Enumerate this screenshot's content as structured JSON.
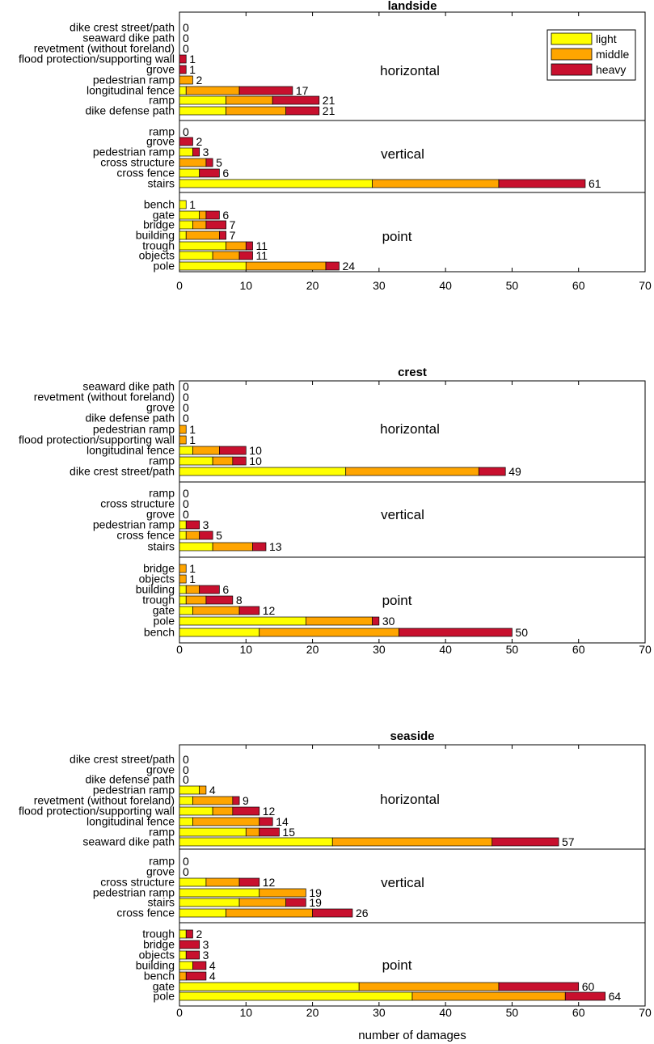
{
  "chart_data": [
    {
      "type": "stacked-bar-horizontal",
      "title": "landside",
      "xlabel": "",
      "xlim": [
        0,
        70
      ],
      "xticks": [
        "0",
        "10",
        "20",
        "30",
        "40",
        "50",
        "60",
        "70"
      ],
      "legend": {
        "placement": "top-right",
        "entries": [
          {
            "name": "light",
            "color": "#ffff00"
          },
          {
            "name": "middle",
            "color": "#ffa500"
          },
          {
            "name": "heavy",
            "color": "#c8102e"
          }
        ]
      },
      "groups": [
        {
          "name": "horizontal",
          "categories": [
            {
              "label": "dike crest street/path",
              "light": 0,
              "middle": 0,
              "heavy": 0,
              "total": "0"
            },
            {
              "label": "seaward dike path",
              "light": 0,
              "middle": 0,
              "heavy": 0,
              "total": "0"
            },
            {
              "label": "revetment (without foreland)",
              "light": 0,
              "middle": 0,
              "heavy": 0,
              "total": "0"
            },
            {
              "label": "flood protection/supporting wall",
              "light": 0,
              "middle": 0,
              "heavy": 1,
              "total": "1"
            },
            {
              "label": "grove",
              "light": 0,
              "middle": 0,
              "heavy": 1,
              "total": "1"
            },
            {
              "label": "pedestrian ramp",
              "light": 0,
              "middle": 2,
              "heavy": 0,
              "total": "2"
            },
            {
              "label": "longitudinal fence",
              "light": 1,
              "middle": 8,
              "heavy": 8,
              "total": "17"
            },
            {
              "label": "ramp",
              "light": 7,
              "middle": 7,
              "heavy": 7,
              "total": "21"
            },
            {
              "label": "dike defense path",
              "light": 7,
              "middle": 9,
              "heavy": 5,
              "total": "21"
            }
          ]
        },
        {
          "name": "vertical",
          "categories": [
            {
              "label": "ramp",
              "light": 0,
              "middle": 0,
              "heavy": 0,
              "total": "0"
            },
            {
              "label": "grove",
              "light": 0,
              "middle": 0,
              "heavy": 2,
              "total": "2"
            },
            {
              "label": "pedestrian ramp",
              "light": 2,
              "middle": 0,
              "heavy": 1,
              "total": "3"
            },
            {
              "label": "cross structure",
              "light": 0,
              "middle": 4,
              "heavy": 1,
              "total": "5"
            },
            {
              "label": "cross fence",
              "light": 3,
              "middle": 0,
              "heavy": 3,
              "total": "6"
            },
            {
              "label": "stairs",
              "light": 29,
              "middle": 19,
              "heavy": 13,
              "total": "61"
            }
          ]
        },
        {
          "name": "point",
          "categories": [
            {
              "label": "bench",
              "light": 1,
              "middle": 0,
              "heavy": 0,
              "total": "1"
            },
            {
              "label": "gate",
              "light": 3,
              "middle": 1,
              "heavy": 2,
              "total": "6"
            },
            {
              "label": "bridge",
              "light": 2,
              "middle": 2,
              "heavy": 3,
              "total": "7"
            },
            {
              "label": "building",
              "light": 1,
              "middle": 5,
              "heavy": 1,
              "total": "7"
            },
            {
              "label": "trough",
              "light": 7,
              "middle": 3,
              "heavy": 1,
              "total": "11"
            },
            {
              "label": "objects",
              "light": 5,
              "middle": 4,
              "heavy": 2,
              "total": "11"
            },
            {
              "label": "pole",
              "light": 10,
              "middle": 12,
              "heavy": 2,
              "total": "24"
            }
          ]
        }
      ]
    },
    {
      "type": "stacked-bar-horizontal",
      "title": "crest",
      "xlabel": "",
      "xlim": [
        0,
        70
      ],
      "xticks": [
        "0",
        "10",
        "20",
        "30",
        "40",
        "50",
        "60",
        "70"
      ],
      "groups": [
        {
          "name": "horizontal",
          "categories": [
            {
              "label": "seaward dike path",
              "light": 0,
              "middle": 0,
              "heavy": 0,
              "total": "0"
            },
            {
              "label": "revetment (without foreland)",
              "light": 0,
              "middle": 0,
              "heavy": 0,
              "total": "0"
            },
            {
              "label": "grove",
              "light": 0,
              "middle": 0,
              "heavy": 0,
              "total": "0"
            },
            {
              "label": "dike defense path",
              "light": 0,
              "middle": 0,
              "heavy": 0,
              "total": "0"
            },
            {
              "label": "pedestrian ramp",
              "light": 0,
              "middle": 1,
              "heavy": 0,
              "total": "1"
            },
            {
              "label": "flood protection/supporting wall",
              "light": 0,
              "middle": 1,
              "heavy": 0,
              "total": "1"
            },
            {
              "label": "longitudinal fence",
              "light": 2,
              "middle": 4,
              "heavy": 4,
              "total": "10"
            },
            {
              "label": "ramp",
              "light": 5,
              "middle": 3,
              "heavy": 2,
              "total": "10"
            },
            {
              "label": "dike crest street/path",
              "light": 25,
              "middle": 20,
              "heavy": 4,
              "total": "49"
            }
          ]
        },
        {
          "name": "vertical",
          "categories": [
            {
              "label": "ramp",
              "light": 0,
              "middle": 0,
              "heavy": 0,
              "total": "0"
            },
            {
              "label": "cross structure",
              "light": 0,
              "middle": 0,
              "heavy": 0,
              "total": "0"
            },
            {
              "label": "grove",
              "light": 0,
              "middle": 0,
              "heavy": 0,
              "total": "0"
            },
            {
              "label": "pedestrian ramp",
              "light": 1,
              "middle": 0,
              "heavy": 2,
              "total": "3"
            },
            {
              "label": "cross fence",
              "light": 1,
              "middle": 2,
              "heavy": 2,
              "total": "5"
            },
            {
              "label": "stairs",
              "light": 5,
              "middle": 6,
              "heavy": 2,
              "total": "13"
            }
          ]
        },
        {
          "name": "point",
          "categories": [
            {
              "label": "bridge",
              "light": 0,
              "middle": 1,
              "heavy": 0,
              "total": "1"
            },
            {
              "label": "objects",
              "light": 0,
              "middle": 1,
              "heavy": 0,
              "total": "1"
            },
            {
              "label": "building",
              "light": 1,
              "middle": 2,
              "heavy": 3,
              "total": "6"
            },
            {
              "label": "trough",
              "light": 1,
              "middle": 3,
              "heavy": 4,
              "total": "8"
            },
            {
              "label": "gate",
              "light": 2,
              "middle": 7,
              "heavy": 3,
              "total": "12"
            },
            {
              "label": "pole",
              "light": 19,
              "middle": 10,
              "heavy": 1,
              "total": "30"
            },
            {
              "label": "bench",
              "light": 12,
              "middle": 21,
              "heavy": 17,
              "total": "50"
            }
          ]
        }
      ]
    },
    {
      "type": "stacked-bar-horizontal",
      "title": "seaside",
      "xlabel": "number of damages",
      "xlim": [
        0,
        70
      ],
      "xticks": [
        "0",
        "10",
        "20",
        "30",
        "40",
        "50",
        "60",
        "70"
      ],
      "groups": [
        {
          "name": "horizontal",
          "categories": [
            {
              "label": "dike crest street/path",
              "light": 0,
              "middle": 0,
              "heavy": 0,
              "total": "0"
            },
            {
              "label": "grove",
              "light": 0,
              "middle": 0,
              "heavy": 0,
              "total": "0"
            },
            {
              "label": "dike defense path",
              "light": 0,
              "middle": 0,
              "heavy": 0,
              "total": "0"
            },
            {
              "label": "pedestrian ramp",
              "light": 3,
              "middle": 1,
              "heavy": 0,
              "total": "4"
            },
            {
              "label": "revetment (without foreland)",
              "light": 2,
              "middle": 6,
              "heavy": 1,
              "total": "9"
            },
            {
              "label": "flood protection/supporting wall",
              "light": 5,
              "middle": 3,
              "heavy": 4,
              "total": "12"
            },
            {
              "label": "longitudinal fence",
              "light": 2,
              "middle": 10,
              "heavy": 2,
              "total": "14"
            },
            {
              "label": "ramp",
              "light": 10,
              "middle": 2,
              "heavy": 3,
              "total": "15"
            },
            {
              "label": "seaward dike path",
              "light": 23,
              "middle": 24,
              "heavy": 10,
              "total": "57"
            }
          ]
        },
        {
          "name": "vertical",
          "categories": [
            {
              "label": "ramp",
              "light": 0,
              "middle": 0,
              "heavy": 0,
              "total": "0"
            },
            {
              "label": "grove",
              "light": 0,
              "middle": 0,
              "heavy": 0,
              "total": "0"
            },
            {
              "label": "cross structure",
              "light": 4,
              "middle": 5,
              "heavy": 3,
              "total": "12"
            },
            {
              "label": "pedestrian ramp",
              "light": 12,
              "middle": 7,
              "heavy": 0,
              "total": "19"
            },
            {
              "label": "stairs",
              "light": 9,
              "middle": 7,
              "heavy": 3,
              "total": "19"
            },
            {
              "label": "cross fence",
              "light": 7,
              "middle": 13,
              "heavy": 6,
              "total": "26"
            }
          ]
        },
        {
          "name": "point",
          "categories": [
            {
              "label": "trough",
              "light": 1,
              "middle": 0,
              "heavy": 1,
              "total": "2"
            },
            {
              "label": "bridge",
              "light": 0,
              "middle": 0,
              "heavy": 3,
              "total": "3"
            },
            {
              "label": "objects",
              "light": 1,
              "middle": 0,
              "heavy": 2,
              "total": "3"
            },
            {
              "label": "building",
              "light": 2,
              "middle": 0,
              "heavy": 2,
              "total": "4"
            },
            {
              "label": "bench",
              "light": 0,
              "middle": 1,
              "heavy": 3,
              "total": "4"
            },
            {
              "label": "gate",
              "light": 27,
              "middle": 21,
              "heavy": 12,
              "total": "60"
            },
            {
              "label": "pole",
              "light": 35,
              "middle": 23,
              "heavy": 6,
              "total": "64"
            }
          ]
        }
      ]
    }
  ]
}
